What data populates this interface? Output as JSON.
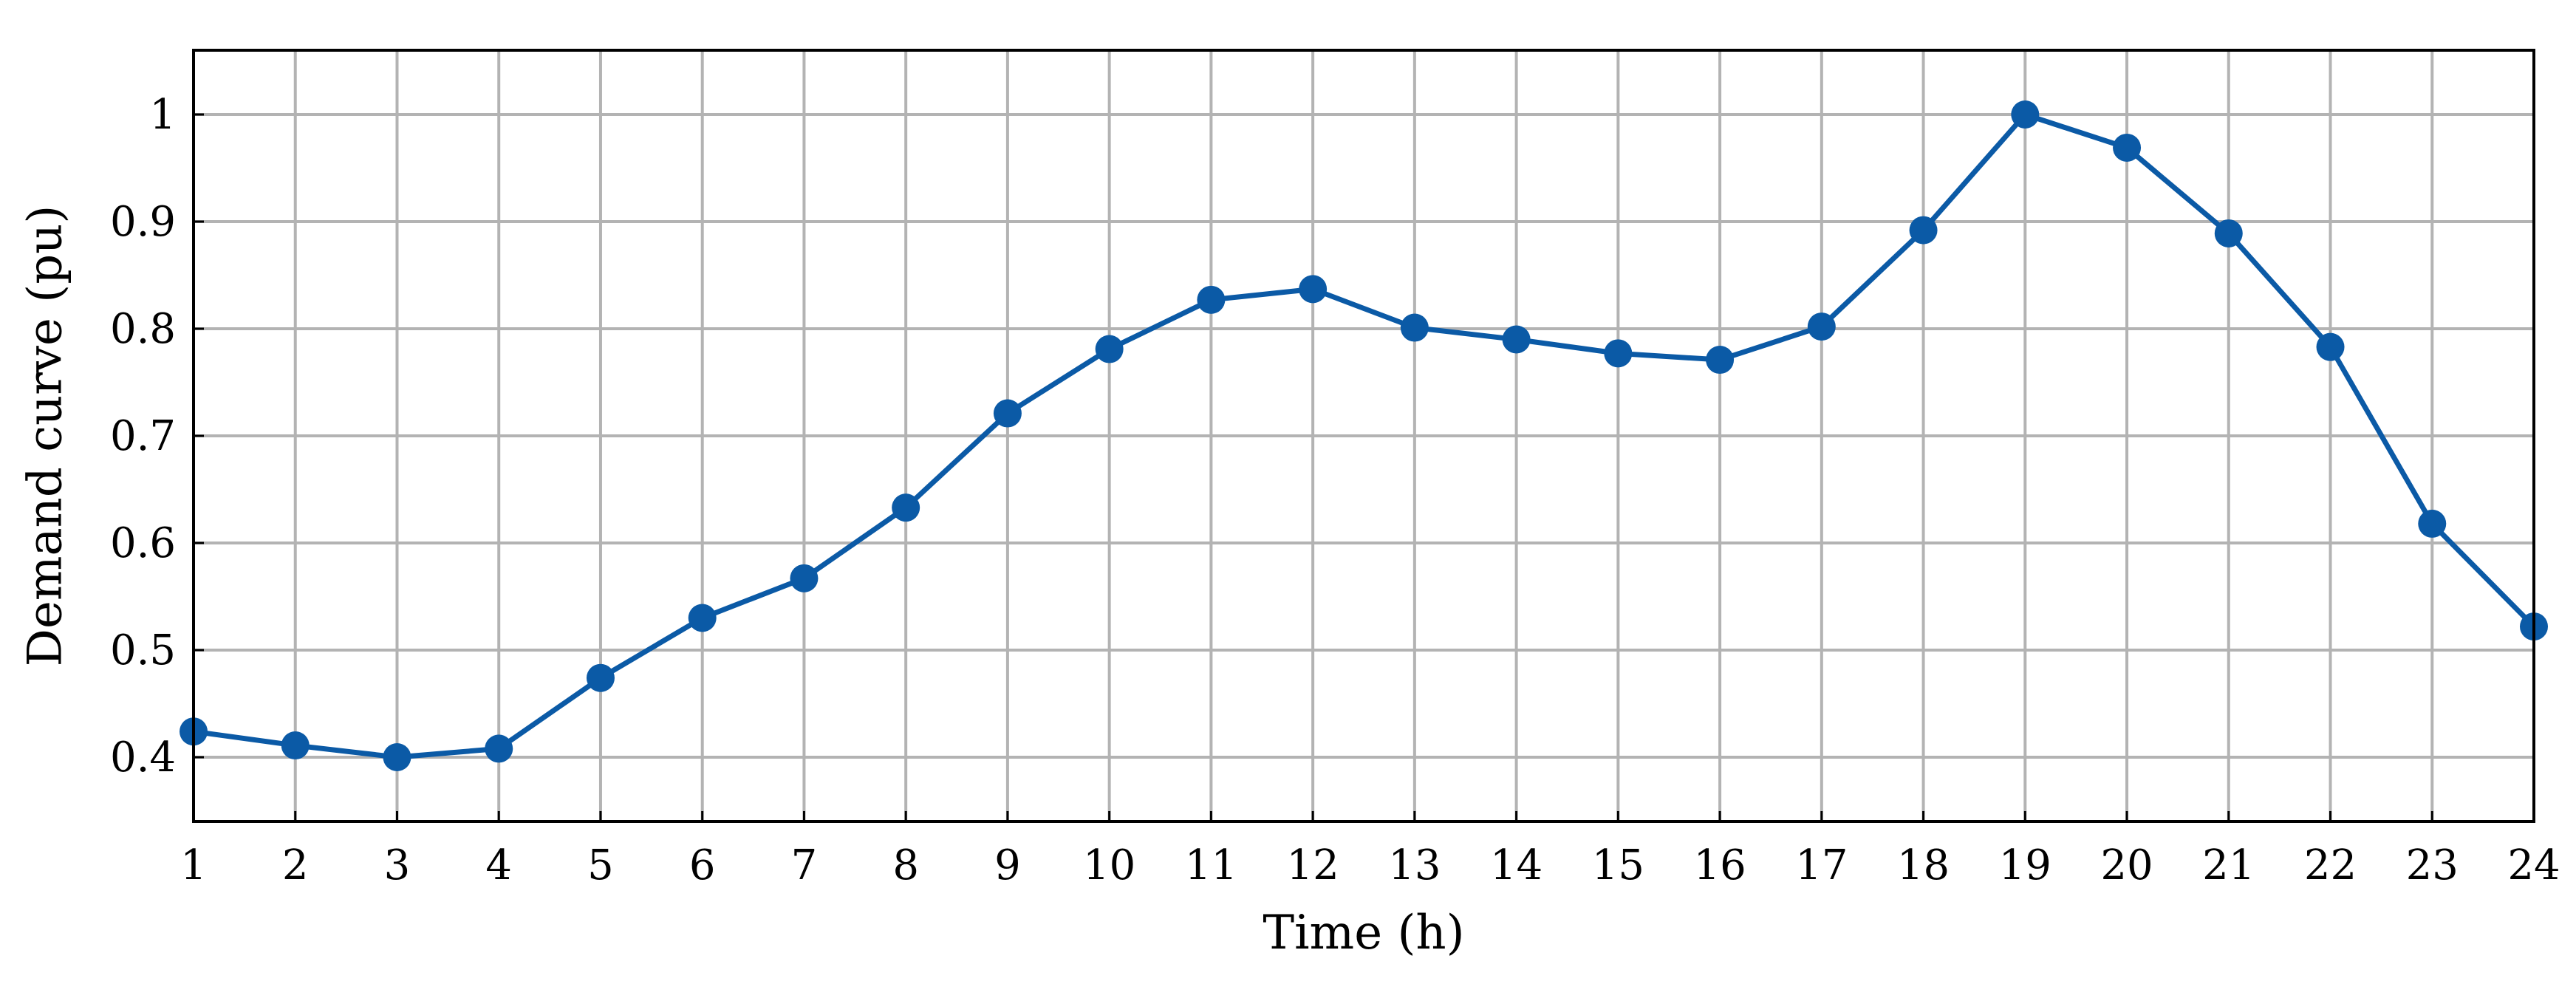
{
  "chart_data": {
    "type": "line",
    "xlabel": "Time (h)",
    "ylabel": "Demand curve (pu)",
    "x": [
      1,
      2,
      3,
      4,
      5,
      6,
      7,
      8,
      9,
      10,
      11,
      12,
      13,
      14,
      15,
      16,
      17,
      18,
      19,
      20,
      21,
      22,
      23,
      24
    ],
    "series": [
      {
        "values": [
          0.424,
          0.411,
          0.4,
          0.408,
          0.474,
          0.53,
          0.567,
          0.633,
          0.721,
          0.781,
          0.827,
          0.837,
          0.801,
          0.79,
          0.777,
          0.771,
          0.802,
          0.892,
          1.0,
          0.969,
          0.889,
          0.783,
          0.618,
          0.522
        ],
        "color": "#0b5aa6",
        "marker": "circle"
      }
    ],
    "xlim": [
      1,
      24
    ],
    "ylim": [
      0.34,
      1.06
    ],
    "xticks": [
      "1",
      "2",
      "3",
      "4",
      "5",
      "6",
      "7",
      "8",
      "9",
      "10",
      "11",
      "12",
      "13",
      "14",
      "15",
      "16",
      "17",
      "18",
      "19",
      "20",
      "21",
      "22",
      "23",
      "24"
    ],
    "yticks": [
      "0.4",
      "0.5",
      "0.6",
      "0.7",
      "0.8",
      "0.9",
      "1"
    ],
    "grid": true,
    "legend": "none",
    "colors": {
      "grid": "#b3b3b3",
      "axis": "#000000",
      "series": "#0b5aa6"
    }
  }
}
